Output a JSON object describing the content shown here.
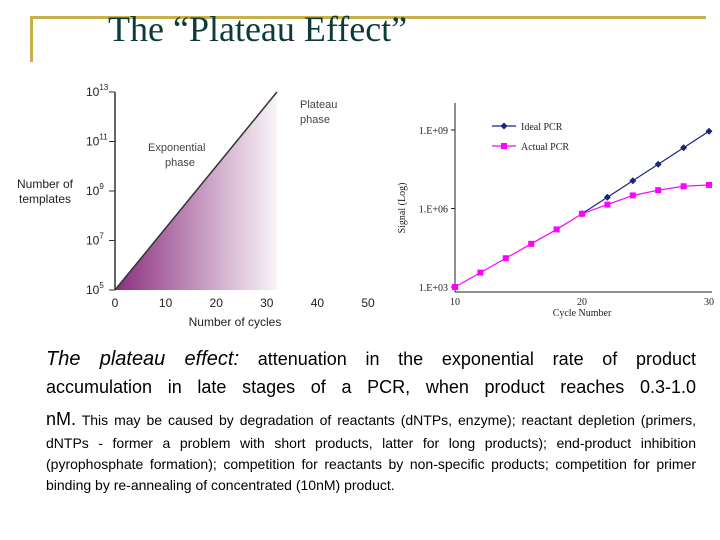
{
  "title": "The “Plateau Effect”",
  "caption": {
    "lead": "The plateau effect",
    "colon": ":",
    "line1_rest": " attenuation in the exponential rate of product",
    "line2": "accumulation in late stages of a PCR, when product reaches 0.3-1.0",
    "line3_big": "nM.",
    "line3_small": " This may be caused by degradation of reactants (dNTPs, enzyme); reactant depletion (primers, dNTPs - former a problem with short products, latter for long products); end-product inhibition (pyrophosphate formation); competition for reactants by non-specific products; competition for primer binding by re-annealing of concentrated (10nM) product."
  },
  "chart_data": [
    {
      "type": "line",
      "ylabel_line1": "Number of",
      "ylabel_line2": "templates",
      "xlabel": "Number of cycles",
      "x_ticks": [
        "0",
        "10",
        "20",
        "30",
        "40",
        "50"
      ],
      "y_ticks": [
        {
          "base": "10",
          "exp": "5"
        },
        {
          "base": "10",
          "exp": "7"
        },
        {
          "base": "10",
          "exp": "9"
        },
        {
          "base": "10",
          "exp": "11"
        },
        {
          "base": "10",
          "exp": "13"
        }
      ],
      "xlim": [
        0,
        50
      ],
      "y_log_exp_range": [
        5,
        13
      ],
      "exponential": {
        "x": [
          0,
          32
        ],
        "y_exp": [
          5,
          13
        ]
      },
      "plateau_x_range": [
        32,
        50
      ],
      "annotations": {
        "exp_line1": "Exponential",
        "exp_line2": "phase",
        "plat_line1": "Plateau",
        "plat_line2": "phase"
      },
      "shade_color": "#8a2f7e"
    },
    {
      "type": "line",
      "ylabel": "Signal (Log)",
      "xlabel": "Cycle Number",
      "x_ticks": [
        "10",
        "20",
        "30"
      ],
      "y_ticks": [
        "1.E+03",
        "1.E+06",
        "1.E+09"
      ],
      "xlim": [
        10,
        30
      ],
      "series": [
        {
          "name": "Ideal PCR",
          "color": "#1a237e",
          "x": [
            20,
            22,
            24,
            26,
            28,
            30
          ],
          "y_log": [
            5.8,
            6.43,
            7.06,
            7.69,
            8.32,
            8.95
          ]
        },
        {
          "name": "Actual PCR",
          "color": "#ff00ff",
          "x": [
            10,
            12,
            14,
            16,
            18,
            20,
            22,
            24,
            26,
            28,
            30
          ],
          "y_log": [
            3.0,
            3.55,
            4.1,
            4.65,
            5.2,
            5.8,
            6.15,
            6.5,
            6.7,
            6.85,
            6.9
          ]
        }
      ]
    }
  ]
}
